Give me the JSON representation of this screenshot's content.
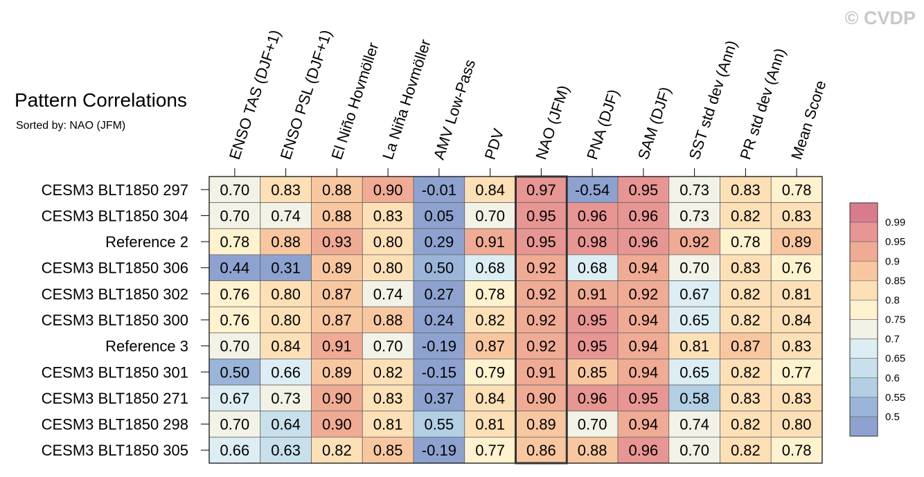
{
  "watermark": "© CVDP",
  "chart_data": {
    "type": "heatmap",
    "title": "Pattern Correlations",
    "subtitle": "Sorted by: NAO (JFM)",
    "highlighted_column": "NAO (JFM)",
    "columns": [
      "ENSO TAS (DJF+1)",
      "ENSO PSL (DJF+1)",
      "El Niño Hovmöller",
      "La Niña Hovmöller",
      "AMV Low-Pass",
      "PDV",
      "NAO (JFM)",
      "PNA (DJF)",
      "SAM (DJF)",
      "SST std dev (Ann)",
      "PR std dev (Ann)",
      "Mean Score"
    ],
    "rows": [
      {
        "label": "CESM3 BLT1850 297",
        "values": [
          "0.70",
          "0.83",
          "0.88",
          "0.90",
          "-0.01",
          "0.84",
          "0.97",
          "-0.54",
          "0.95",
          "0.73",
          "0.83",
          "0.78"
        ]
      },
      {
        "label": "CESM3 BLT1850 304",
        "values": [
          "0.70",
          "0.74",
          "0.88",
          "0.83",
          "0.05",
          "0.70",
          "0.95",
          "0.96",
          "0.96",
          "0.73",
          "0.82",
          "0.83"
        ]
      },
      {
        "label": "Reference 2",
        "values": [
          "0.78",
          "0.88",
          "0.93",
          "0.80",
          "0.29",
          "0.91",
          "0.95",
          "0.98",
          "0.96",
          "0.92",
          "0.78",
          "0.89"
        ]
      },
      {
        "label": "CESM3 BLT1850 306",
        "values": [
          "0.44",
          "0.31",
          "0.89",
          "0.80",
          "0.50",
          "0.68",
          "0.92",
          "0.68",
          "0.94",
          "0.70",
          "0.83",
          "0.76"
        ]
      },
      {
        "label": "CESM3 BLT1850 302",
        "values": [
          "0.76",
          "0.80",
          "0.87",
          "0.74",
          "0.27",
          "0.78",
          "0.92",
          "0.91",
          "0.92",
          "0.67",
          "0.82",
          "0.81"
        ]
      },
      {
        "label": "CESM3 BLT1850 300",
        "values": [
          "0.76",
          "0.80",
          "0.87",
          "0.88",
          "0.24",
          "0.82",
          "0.92",
          "0.95",
          "0.94",
          "0.65",
          "0.82",
          "0.84"
        ]
      },
      {
        "label": "Reference 3",
        "values": [
          "0.70",
          "0.84",
          "0.91",
          "0.70",
          "-0.19",
          "0.87",
          "0.92",
          "0.95",
          "0.94",
          "0.81",
          "0.87",
          "0.83"
        ]
      },
      {
        "label": "CESM3 BLT1850 301",
        "values": [
          "0.50",
          "0.66",
          "0.89",
          "0.82",
          "-0.15",
          "0.79",
          "0.91",
          "0.85",
          "0.94",
          "0.65",
          "0.82",
          "0.77"
        ]
      },
      {
        "label": "CESM3 BLT1850 271",
        "values": [
          "0.67",
          "0.73",
          "0.90",
          "0.83",
          "0.37",
          "0.84",
          "0.90",
          "0.96",
          "0.95",
          "0.58",
          "0.83",
          "0.83"
        ]
      },
      {
        "label": "CESM3 BLT1850 298",
        "values": [
          "0.70",
          "0.64",
          "0.90",
          "0.81",
          "0.55",
          "0.81",
          "0.89",
          "0.70",
          "0.94",
          "0.74",
          "0.82",
          "0.80"
        ]
      },
      {
        "label": "CESM3 BLT1850 305",
        "values": [
          "0.66",
          "0.63",
          "0.82",
          "0.85",
          "-0.19",
          "0.77",
          "0.86",
          "0.88",
          "0.96",
          "0.70",
          "0.82",
          "0.78"
        ]
      }
    ],
    "colorbar": {
      "levels": [
        "0.99",
        "0.95",
        "0.9",
        "0.85",
        "0.8",
        "0.75",
        "0.7",
        "0.65",
        "0.6",
        "0.55",
        "0.5"
      ],
      "colors": [
        "#d87b8d",
        "#e79693",
        "#f0ab94",
        "#f8c7a0",
        "#fde0b6",
        "#fff2cf",
        "#f2f2e6",
        "#dcedf3",
        "#c7e0ec",
        "#b2cfe4",
        "#9ab5d8",
        "#8ea2d0"
      ]
    }
  }
}
